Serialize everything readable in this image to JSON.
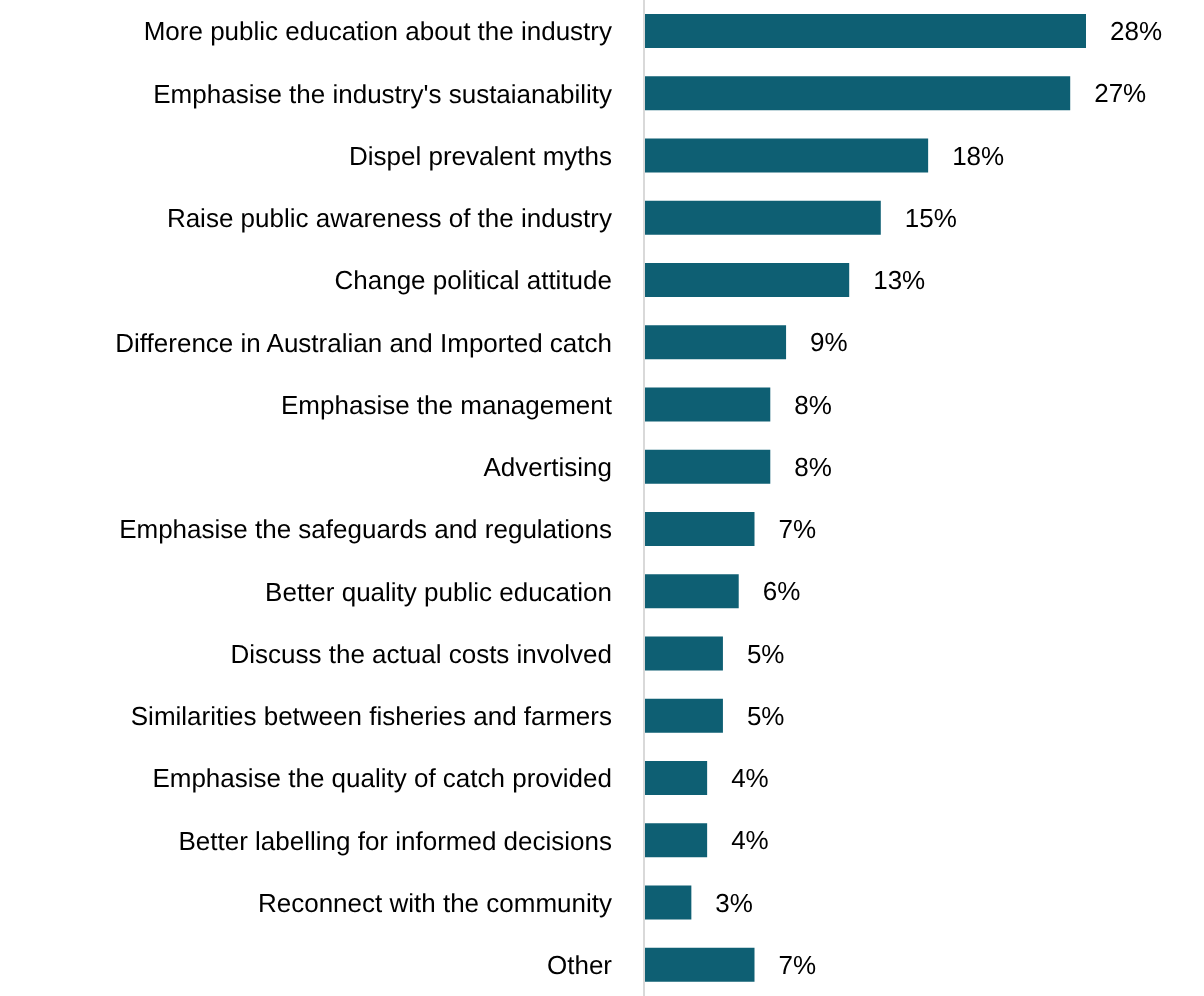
{
  "chart_data": {
    "type": "bar",
    "orientation": "horizontal",
    "categories": [
      "More public education about the industry",
      "Emphasise the industry's sustaianability",
      "Dispel prevalent myths",
      "Raise public awareness of the industry",
      "Change political attitude",
      "Difference in Australian and Imported catch",
      "Emphasise the management",
      "Advertising",
      "Emphasise the safeguards and regulations",
      "Better quality public education",
      "Discuss the actual costs involved",
      "Similarities between fisheries and farmers",
      "Emphasise the quality of catch provided",
      "Better labelling for informed decisions",
      "Reconnect with the community",
      "Other"
    ],
    "values": [
      28,
      27,
      18,
      15,
      13,
      9,
      8,
      8,
      7,
      6,
      5,
      5,
      4,
      4,
      3,
      7
    ],
    "value_labels": [
      "28%",
      "27%",
      "18%",
      "15%",
      "13%",
      "9%",
      "8%",
      "8%",
      "7%",
      "6%",
      "5%",
      "5%",
      "4%",
      "4%",
      "3%",
      "7%"
    ],
    "color": "#0e5f73",
    "grid": false,
    "legend": false
  }
}
